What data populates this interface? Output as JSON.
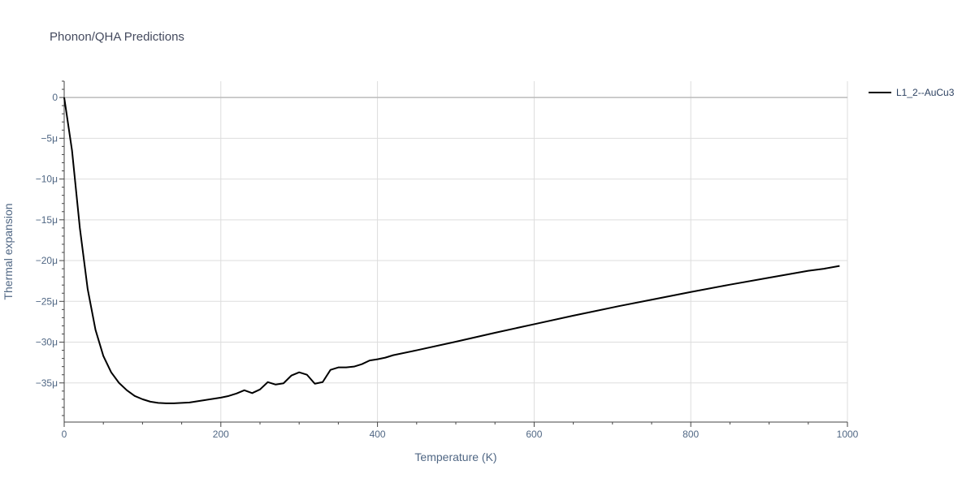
{
  "chart_data": {
    "type": "line",
    "title": "Phonon/QHA Predictions",
    "xlabel": "Temperature (K)",
    "ylabel": "Thermal expansion",
    "xlim": [
      0,
      1000
    ],
    "ylim": [
      -39.8,
      2.0
    ],
    "x_ticks": [
      0,
      200,
      400,
      600,
      800,
      1000
    ],
    "x_tick_labels": [
      "0",
      "200",
      "400",
      "600",
      "800",
      "1000"
    ],
    "y_ticks": [
      0,
      -5,
      -10,
      -15,
      -20,
      -25,
      -30,
      -35
    ],
    "y_tick_labels": [
      "0",
      "−5μ",
      "−10μ",
      "−15μ",
      "−20μ",
      "−25μ",
      "−30μ",
      "−35μ"
    ],
    "grid": true,
    "legend_position": "top-right",
    "series": [
      {
        "name": "L1_2--AuCu3",
        "color": "#000000",
        "x": [
          0,
          10,
          20,
          30,
          40,
          50,
          60,
          70,
          80,
          90,
          100,
          110,
          120,
          130,
          140,
          150,
          160,
          170,
          180,
          190,
          200,
          210,
          220,
          230,
          240,
          250,
          260,
          270,
          280,
          290,
          300,
          310,
          320,
          330,
          340,
          350,
          360,
          370,
          380,
          390,
          400,
          410,
          420,
          450,
          500,
          550,
          600,
          650,
          700,
          710,
          750,
          800,
          850,
          900,
          950,
          970,
          990
        ],
        "y": [
          0,
          -6.5,
          -16,
          -23.5,
          -28.5,
          -31.7,
          -33.7,
          -35.0,
          -35.9,
          -36.6,
          -37.0,
          -37.3,
          -37.45,
          -37.5,
          -37.5,
          -37.45,
          -37.4,
          -37.25,
          -37.1,
          -36.95,
          -36.8,
          -36.6,
          -36.3,
          -35.9,
          -36.25,
          -35.8,
          -34.9,
          -35.2,
          -35.05,
          -34.1,
          -33.7,
          -34.0,
          -35.1,
          -34.9,
          -33.4,
          -33.1,
          -33.1,
          -33.0,
          -32.7,
          -32.25,
          -32.1,
          -31.9,
          -31.6,
          -31.0,
          -29.95,
          -28.85,
          -27.8,
          -26.75,
          -25.75,
          -25.55,
          -24.8,
          -23.85,
          -22.95,
          -22.1,
          -21.25,
          -21.0,
          -20.65
        ]
      }
    ]
  }
}
